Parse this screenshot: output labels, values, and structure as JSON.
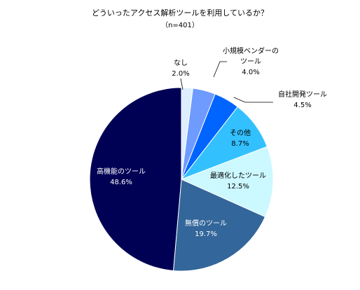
{
  "chart_data": {
    "type": "pie",
    "title": "どういったアクセス解析ツールを利用しているか？",
    "subtitle": "（n=401）",
    "start": "12 o'clock",
    "direction": "clockwise",
    "slices": [
      {
        "label": "なし",
        "label_lines": [
          "なし"
        ],
        "value": 2.0,
        "display": "2.0%",
        "color": "#ddeeff",
        "label_color": "#000000"
      },
      {
        "label": "小規模ベンダーのツール",
        "label_lines": [
          "小規模ベンダーの",
          "ツール"
        ],
        "value": 4.0,
        "display": "4.0%",
        "color": "#6f9bff",
        "label_color": "#000000"
      },
      {
        "label": "自社開発ツール",
        "label_lines": [
          "自社開発ツール"
        ],
        "value": 4.5,
        "display": "4.5%",
        "color": "#0064ff",
        "label_color": "#000000"
      },
      {
        "label": "その他",
        "label_lines": [
          "その他"
        ],
        "value": 8.7,
        "display": "8.7%",
        "color": "#33c0ff",
        "label_color": "#000000"
      },
      {
        "label": "最適化したツール",
        "label_lines": [
          "最適化したツール"
        ],
        "value": 12.5,
        "display": "12.5%",
        "color": "#ccf8ff",
        "label_color": "#000000"
      },
      {
        "label": "無償のツール",
        "label_lines": [
          "無償のツール"
        ],
        "value": 19.7,
        "display": "19.7%",
        "color": "#33669a",
        "label_color": "#ffffff"
      },
      {
        "label": "高機能のツール",
        "label_lines": [
          "高機能のツール"
        ],
        "value": 48.6,
        "display": "48.6%",
        "color": "#000055",
        "label_color": "#ffffff"
      }
    ]
  }
}
